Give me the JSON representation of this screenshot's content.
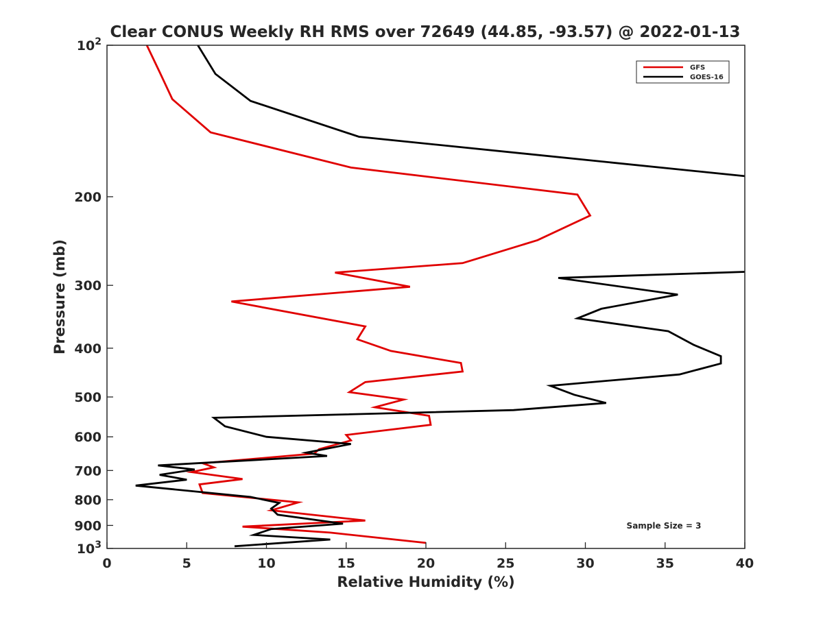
{
  "chart_data": {
    "type": "line",
    "title": "Clear CONUS Weekly RH RMS over 72649 (44.85, -93.57) @ 2022-01-13",
    "xlabel": "Relative Humidity (%)",
    "ylabel": "Pressure (mb)",
    "xlim": [
      0,
      40
    ],
    "ylim": [
      100,
      1000
    ],
    "yscale": "log",
    "yreversed": true,
    "x_ticks": [
      0,
      5,
      10,
      15,
      20,
      25,
      30,
      35,
      40
    ],
    "y_ticks": [
      {
        "value": 100,
        "label": "10",
        "sup": "2"
      },
      {
        "value": 200,
        "label": "200"
      },
      {
        "value": 300,
        "label": "300"
      },
      {
        "value": 400,
        "label": "400"
      },
      {
        "value": 500,
        "label": "500"
      },
      {
        "value": 600,
        "label": "600"
      },
      {
        "value": 700,
        "label": "700"
      },
      {
        "value": 800,
        "label": "800"
      },
      {
        "value": 900,
        "label": "900"
      },
      {
        "value": 1000,
        "label": "10",
        "sup": "3"
      }
    ],
    "grid": false,
    "legend_position": "top-right",
    "annotation": "Sample Size = 3",
    "series": [
      {
        "name": "GFS",
        "color": "#e00000",
        "points": [
          [
            2.5,
            100
          ],
          [
            3.3,
            113
          ],
          [
            4.1,
            128
          ],
          [
            6.5,
            149
          ],
          [
            15.3,
            175
          ],
          [
            29.5,
            198
          ],
          [
            30.3,
            218
          ],
          [
            27.0,
            244
          ],
          [
            22.3,
            271
          ],
          [
            14.3,
            283
          ],
          [
            19.0,
            302
          ],
          [
            7.8,
            323
          ],
          [
            16.2,
            362
          ],
          [
            15.7,
            384
          ],
          [
            17.8,
            405
          ],
          [
            22.2,
            428
          ],
          [
            22.3,
            445
          ],
          [
            16.2,
            467
          ],
          [
            15.2,
            489
          ],
          [
            18.6,
            506
          ],
          [
            16.8,
            524
          ],
          [
            20.2,
            545
          ],
          [
            20.3,
            568
          ],
          [
            15.0,
            595
          ],
          [
            15.3,
            610
          ],
          [
            13.3,
            635
          ],
          [
            13.0,
            648
          ],
          [
            6.0,
            677
          ],
          [
            6.7,
            690
          ],
          [
            5.3,
            705
          ],
          [
            8.5,
            728
          ],
          [
            5.8,
            746
          ],
          [
            6.0,
            776
          ],
          [
            12.0,
            810
          ],
          [
            10.3,
            840
          ],
          [
            16.2,
            880
          ],
          [
            8.5,
            905
          ],
          [
            14.0,
            930
          ],
          [
            20.0,
            975
          ]
        ]
      },
      {
        "name": "GOES-16",
        "color": "#000000",
        "points": [
          [
            5.7,
            100
          ],
          [
            6.8,
            114
          ],
          [
            9.0,
            129
          ],
          [
            15.8,
            152
          ],
          [
            40.0,
            182
          ],
          [
            null,
            null
          ],
          [
            40.0,
            282
          ],
          [
            28.3,
            290
          ],
          [
            35.8,
            313
          ],
          [
            31.0,
            334
          ],
          [
            29.5,
            349
          ],
          [
            35.2,
            370
          ],
          [
            36.8,
            394
          ],
          [
            38.5,
            415
          ],
          [
            38.5,
            429
          ],
          [
            35.9,
            451
          ],
          [
            27.8,
            475
          ],
          [
            29.3,
            495
          ],
          [
            31.3,
            514
          ],
          [
            25.5,
            531
          ],
          [
            6.7,
            550
          ],
          [
            7.4,
            572
          ],
          [
            10.0,
            600
          ],
          [
            15.3,
            620
          ],
          [
            12.5,
            645
          ],
          [
            13.8,
            655
          ],
          [
            3.2,
            684
          ],
          [
            5.5,
            697
          ],
          [
            3.3,
            714
          ],
          [
            5.0,
            730
          ],
          [
            1.8,
            750
          ],
          [
            9.0,
            790
          ],
          [
            10.8,
            812
          ],
          [
            10.3,
            833
          ],
          [
            10.7,
            857
          ],
          [
            14.8,
            893
          ],
          [
            10.3,
            915
          ],
          [
            9.2,
            940
          ],
          [
            14.0,
            960
          ],
          [
            8.0,
            990
          ]
        ]
      }
    ]
  }
}
